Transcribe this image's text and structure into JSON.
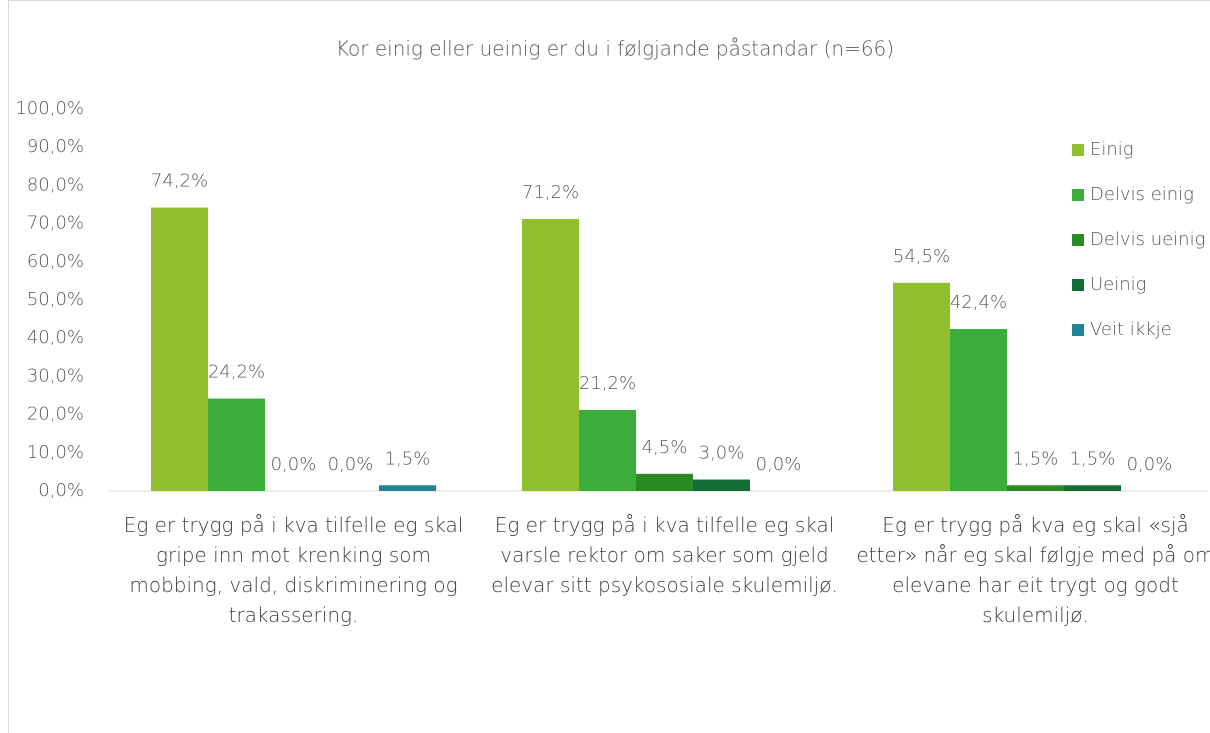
{
  "chart_data": {
    "type": "bar",
    "title": "Kor einig eller ueinig er du i følgjande påstandar (n=66)",
    "categories": [
      "Eg er trygg på i kva tilfelle eg skal gripe inn mot krenking som mobbing, vald, diskriminering og trakassering.",
      "Eg er trygg på i kva tilfelle eg skal varsle rektor om saker som gjeld elevar sitt psykososiale skulemiljø.",
      "Eg er trygg på kva eg skal «sjå etter» når eg skal følgje med på om elevane har eit trygt og godt skulemiljø."
    ],
    "series": [
      {
        "name": "Einig",
        "color": "#8fbf2f",
        "values": [
          74.2,
          71.2,
          54.5
        ],
        "value_labels": [
          "74,2%",
          "71,2%",
          "54,5%"
        ]
      },
      {
        "name": "Delvis einig",
        "color": "#3aad3a",
        "values": [
          24.2,
          21.2,
          42.4
        ],
        "value_labels": [
          "24,2%",
          "21,2%",
          "42,4%"
        ]
      },
      {
        "name": "Delvis ueinig",
        "color": "#2a8b25",
        "values": [
          0,
          4.5,
          1.5
        ],
        "value_labels": [
          "0,0%",
          "4,5%",
          "1,5%"
        ]
      },
      {
        "name": "Ueinig",
        "color": "#146b35",
        "values": [
          0,
          3.0,
          1.5
        ],
        "value_labels": [
          "0,0%",
          "3,0%",
          "1,5%"
        ]
      },
      {
        "name": "Veit ikkje",
        "color": "#1f8494",
        "values": [
          1.5,
          0,
          0
        ],
        "value_labels": [
          "1,5%",
          "0,0%",
          "0,0%"
        ]
      }
    ],
    "ylim": [
      0,
      100
    ],
    "yticks": [
      {
        "value": 0,
        "label": "0,0%"
      },
      {
        "value": 10,
        "label": "10,0%"
      },
      {
        "value": 20,
        "label": "20,0%"
      },
      {
        "value": 30,
        "label": "30,0%"
      },
      {
        "value": 40,
        "label": "40,0%"
      },
      {
        "value": 50,
        "label": "50,0%"
      },
      {
        "value": 60,
        "label": "60,0%"
      },
      {
        "value": 70,
        "label": "70,0%"
      },
      {
        "value": 80,
        "label": "80,0%"
      },
      {
        "value": 90,
        "label": "90,0%"
      },
      {
        "value": 100,
        "label": "100,0%"
      }
    ],
    "legend": "right"
  }
}
